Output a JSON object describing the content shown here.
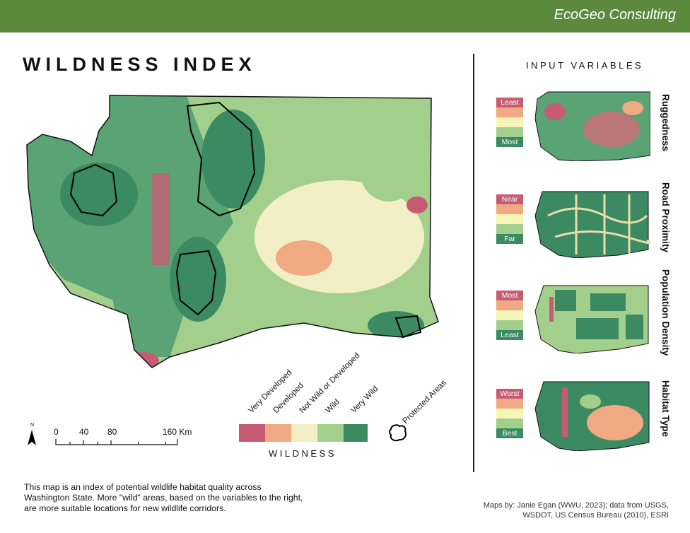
{
  "header": {
    "brand": "EcoGeo Consulting",
    "bar_color": "#5b8a3c"
  },
  "title": "WILDNESS INDEX",
  "input_variables_title": "INPUT VARIABLES",
  "legend": {
    "title": "WILDNESS",
    "classes": [
      {
        "label": "Very Developed",
        "color": "#c65c74"
      },
      {
        "label": "Developed",
        "color": "#f0a982"
      },
      {
        "label": "Not Wild or Developed",
        "color": "#f2efc6"
      },
      {
        "label": "Wild",
        "color": "#a3cf8c"
      },
      {
        "label": "Very Wild",
        "color": "#3b8a61"
      }
    ],
    "protected_areas_label": "Protected Areas"
  },
  "scale_bar": {
    "ticks": [
      "0",
      "40",
      "80",
      "160 Km"
    ],
    "north_label": "N"
  },
  "description": "This map is an index of potential wildlife habitat quality across Washington State. More \"wild\" areas, based on the variables to the right, are more suitable locations for new wildlife corridors.",
  "credits": "Maps by: Janie Egan (WWU, 2023); data from USGS, WSDOT, US Census Bureau (2010), ESRI",
  "input_variables": [
    {
      "name": "Ruggedness",
      "ramp": [
        "Least",
        "",
        "",
        "",
        "Most"
      ]
    },
    {
      "name": "Road Proximity",
      "ramp": [
        "Near",
        "",
        "",
        "",
        "Far"
      ]
    },
    {
      "name": "Population Density",
      "ramp": [
        "Most",
        "",
        "",
        "",
        "Least"
      ]
    },
    {
      "name": "Habitat Type",
      "ramp": [
        "Worst",
        "",
        "",
        "",
        "Best"
      ]
    }
  ]
}
